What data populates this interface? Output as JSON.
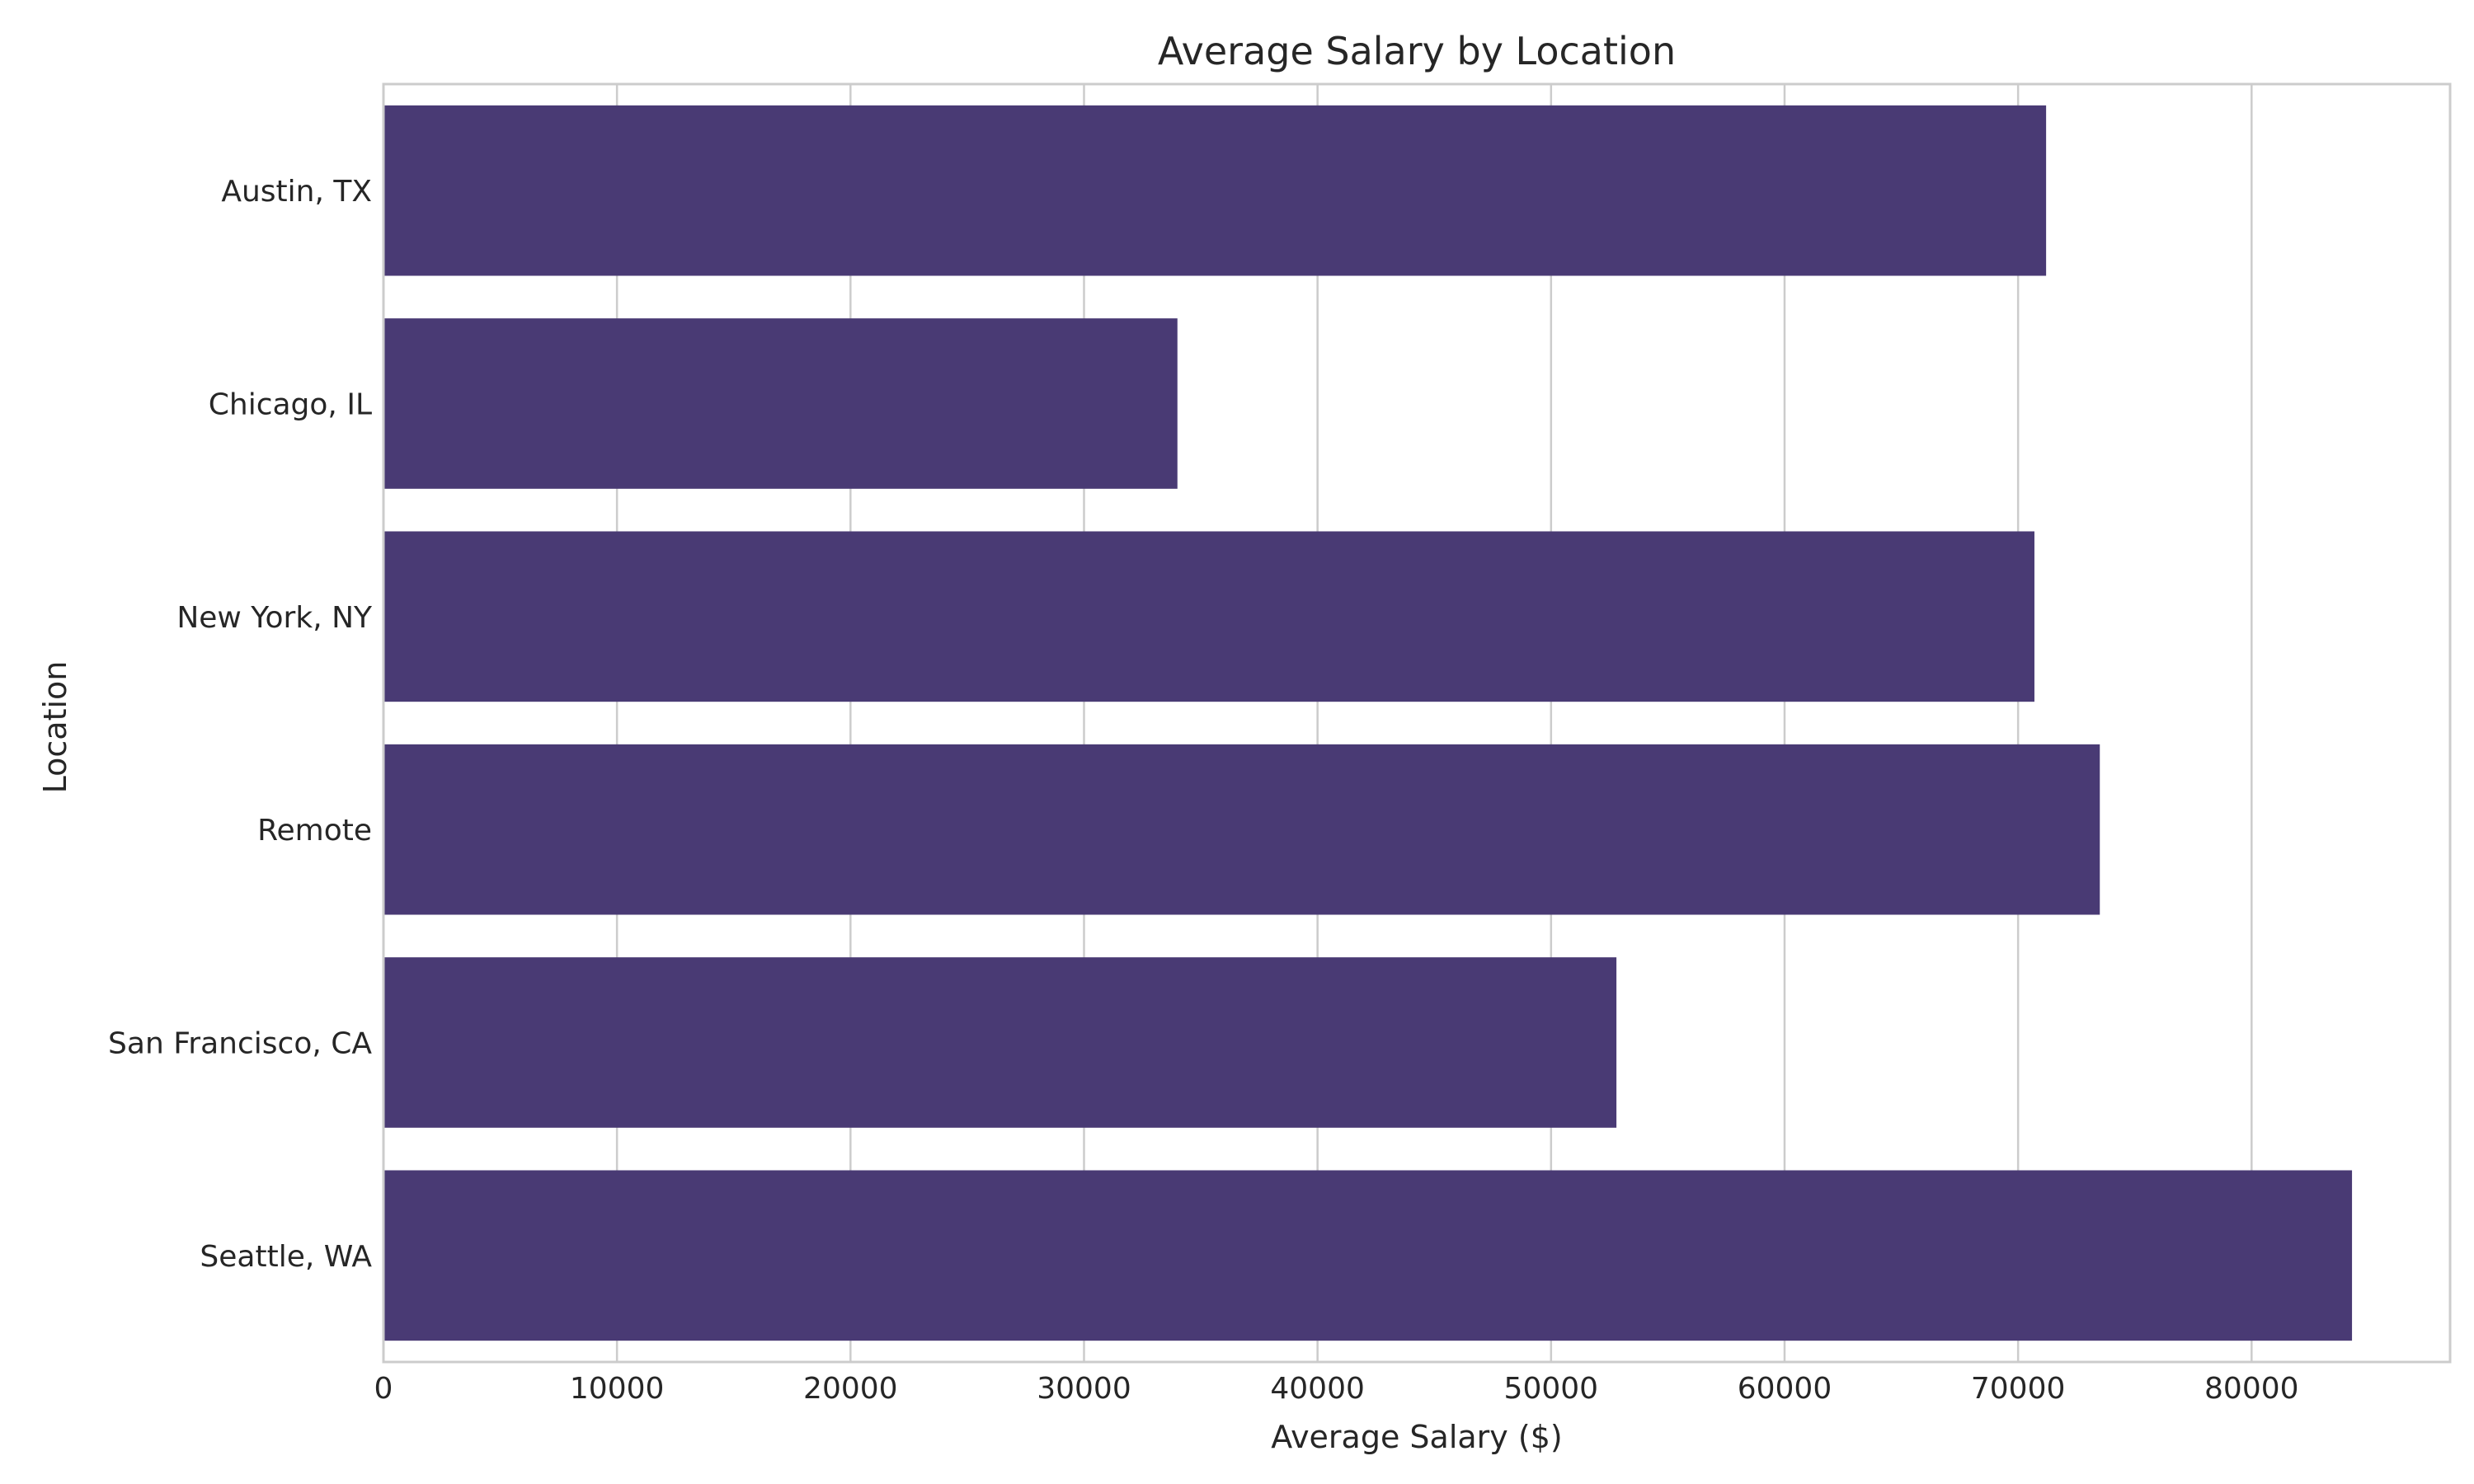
{
  "chart_data": {
    "type": "bar",
    "orientation": "horizontal",
    "title": "Average Salary by Location",
    "xlabel": "Average Salary ($)",
    "ylabel": "Location",
    "categories": [
      "Austin, TX",
      "Chicago, IL",
      "New York, NY",
      "Remote",
      "San Francisco, CA",
      "Seattle, WA"
    ],
    "values": [
      71200,
      34000,
      70700,
      73500,
      52800,
      84300
    ],
    "xlim": [
      0,
      88500
    ],
    "xticks": [
      0,
      10000,
      20000,
      30000,
      40000,
      50000,
      60000,
      70000,
      80000
    ],
    "xtick_labels": [
      "0",
      "10000",
      "20000",
      "30000",
      "40000",
      "50000",
      "60000",
      "70000",
      "80000"
    ],
    "grid": true,
    "bar_color": "#493a74"
  }
}
